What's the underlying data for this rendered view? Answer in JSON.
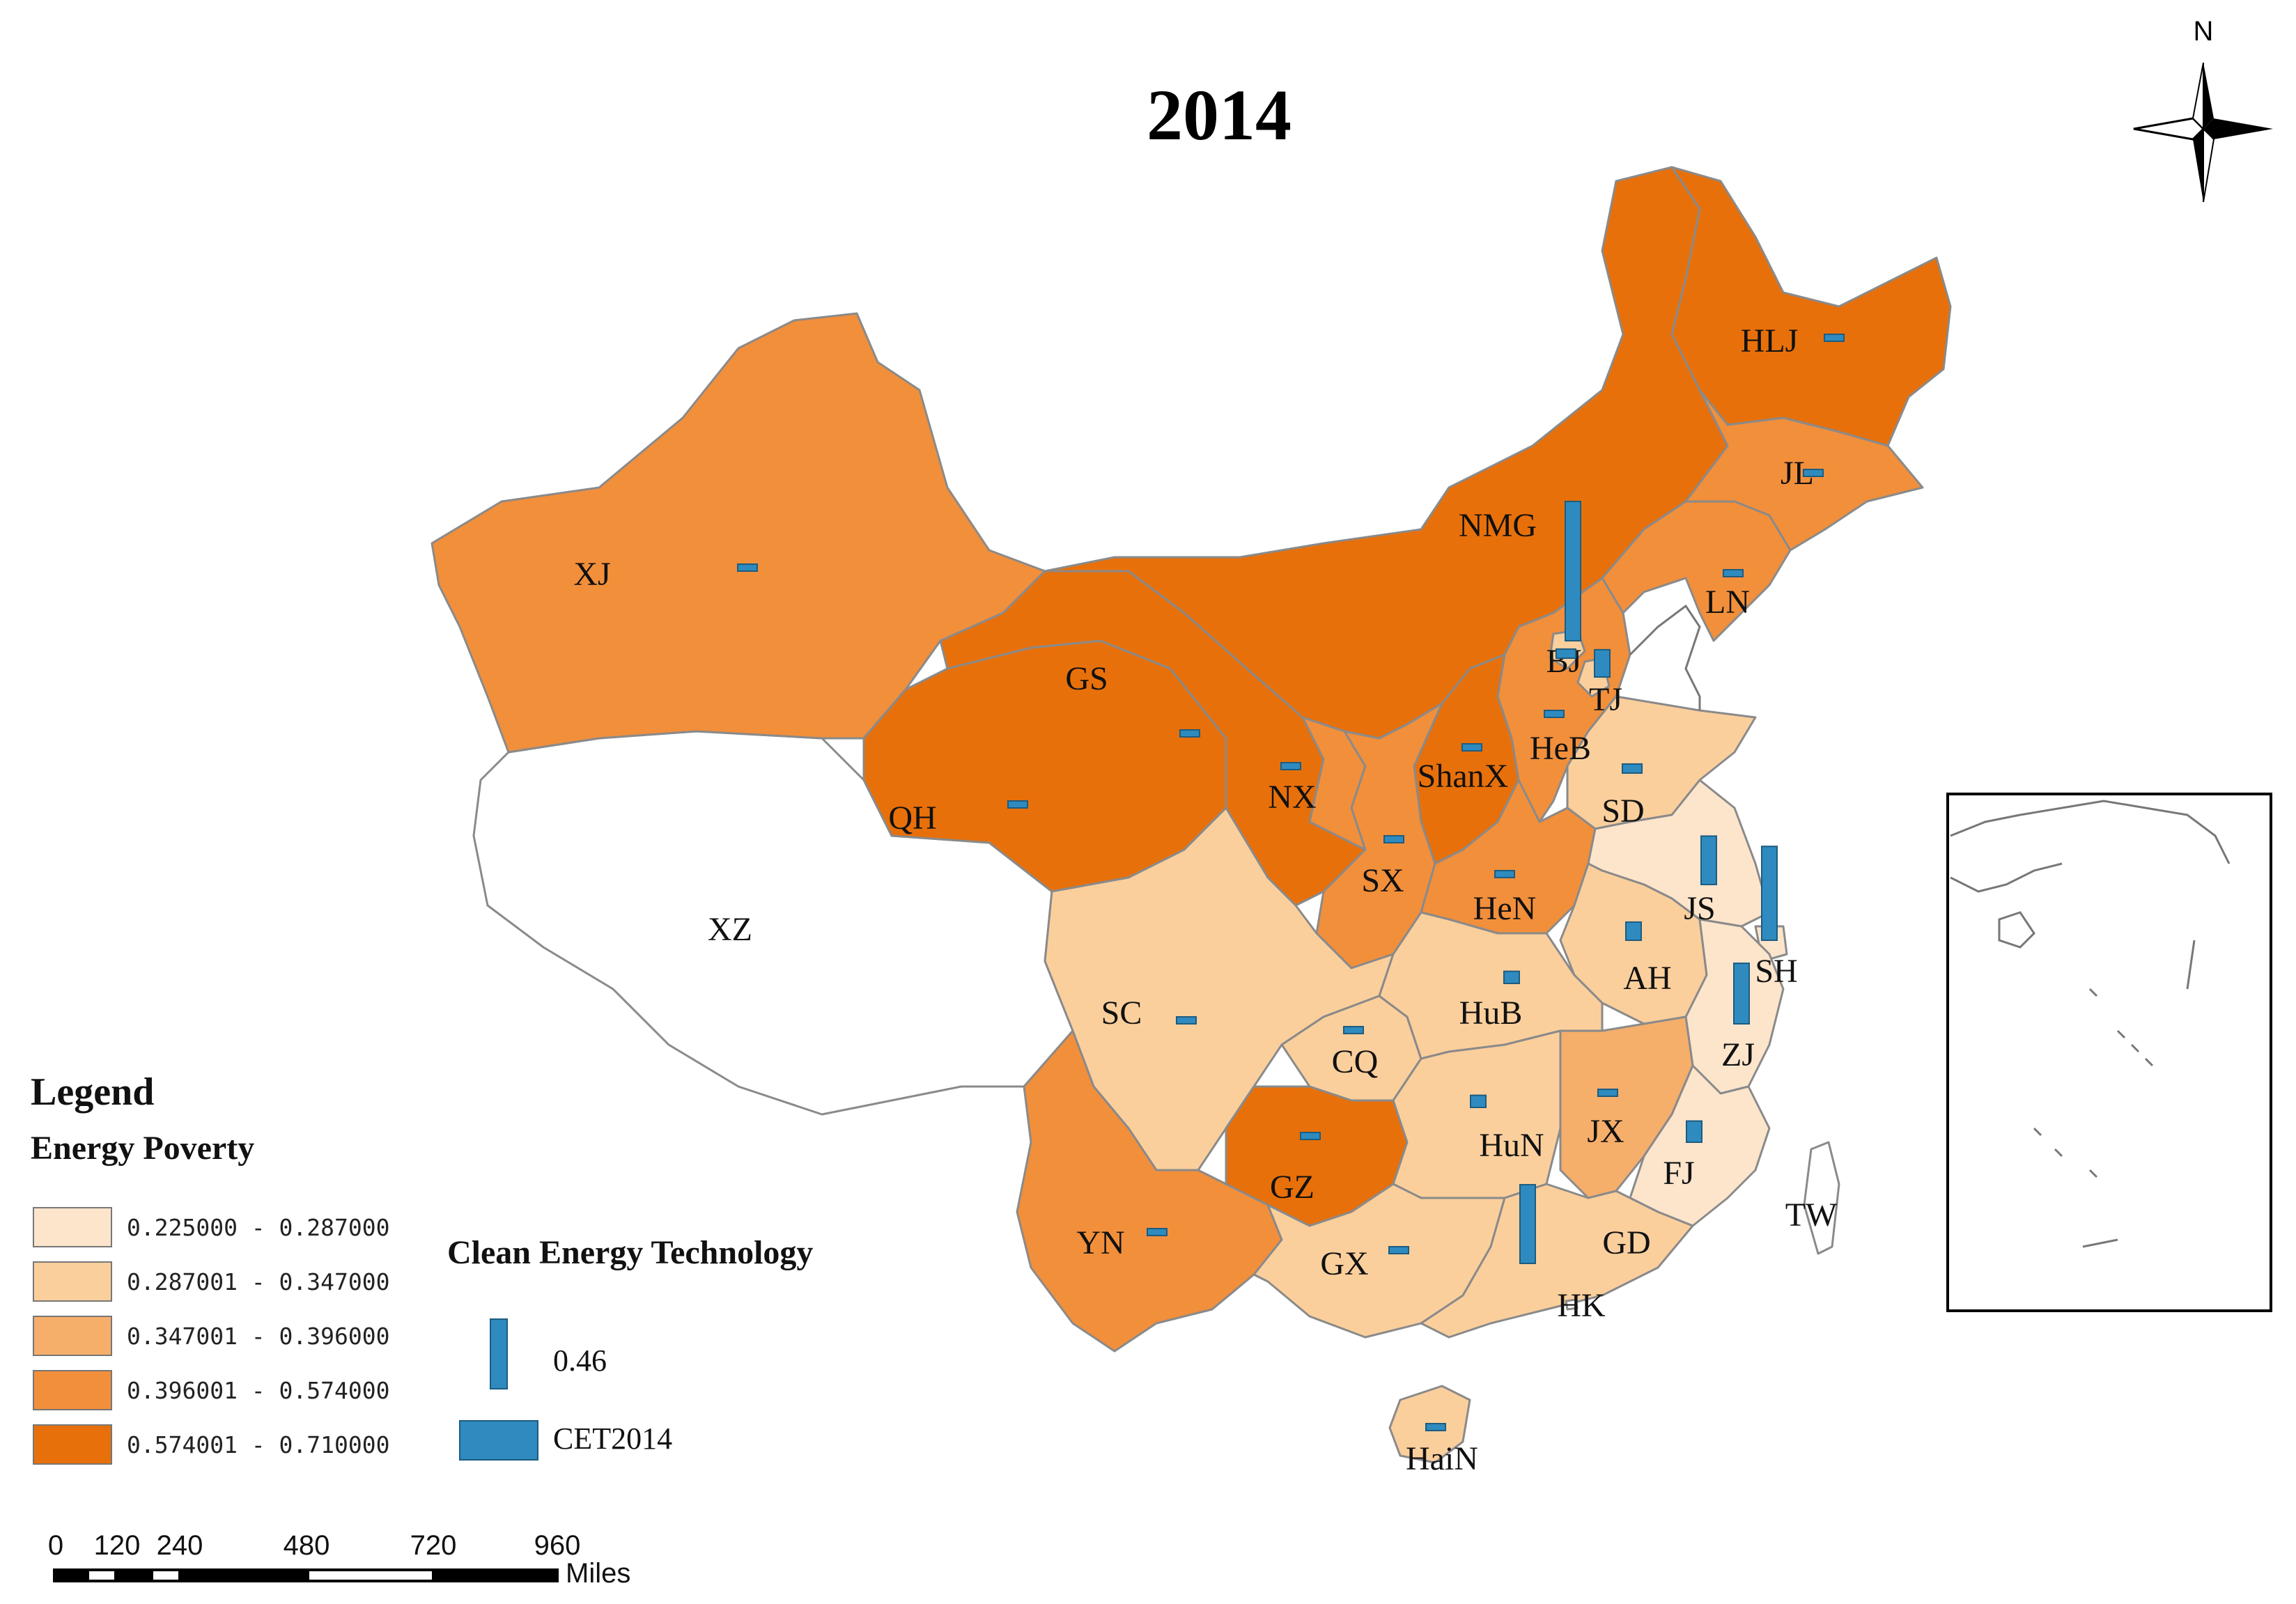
{
  "map": {
    "title": "2014",
    "north_label": "N"
  },
  "legend": {
    "heading": "Legend",
    "energy_poverty_title": "Energy Poverty",
    "classes": [
      {
        "range": "0.225000 - 0.287000",
        "color": "#fde5cc"
      },
      {
        "range": "0.287001 - 0.347000",
        "color": "#fbcf9c"
      },
      {
        "range": "0.347001 - 0.396000",
        "color": "#f6ae6b"
      },
      {
        "range": "0.396001 - 0.574000",
        "color": "#f28f3b"
      },
      {
        "range": "0.574001 - 0.710000",
        "color": "#e8700a"
      }
    ],
    "cet_title": "Clean Energy Technology",
    "cet_value_label": "0.46",
    "cet_series_label": "CET2014",
    "cet_color": "#2f8bbf"
  },
  "scale_bar": {
    "ticks": [
      "0",
      "120",
      "240",
      "480",
      "720",
      "960"
    ],
    "unit": "Miles"
  },
  "provinces": [
    {
      "code": "HLJ",
      "class": 4,
      "cet": 0.02
    },
    {
      "code": "JL",
      "class": 3,
      "cet": 0.02
    },
    {
      "code": "LN",
      "class": 3,
      "cet": 0.02
    },
    {
      "code": "NMG",
      "class": 4,
      "cet": 0.46
    },
    {
      "code": "BJ",
      "class": 1,
      "cet": 0.03
    },
    {
      "code": "TJ",
      "class": 1,
      "cet": 0.09
    },
    {
      "code": "HeB",
      "class": 3,
      "cet": 0.02
    },
    {
      "code": "ShanX",
      "class": 4,
      "cet": 0.02
    },
    {
      "code": "SD",
      "class": 1,
      "cet": 0.03
    },
    {
      "code": "XJ",
      "class": 3,
      "cet": 0.02
    },
    {
      "code": "GS",
      "class": 4,
      "cet": 0.02
    },
    {
      "code": "NX",
      "class": 3,
      "cet": 0.02
    },
    {
      "code": "QH",
      "class": 4,
      "cet": 0.02
    },
    {
      "code": "SX",
      "class": 3,
      "cet": 0.02
    },
    {
      "code": "HeN",
      "class": 3,
      "cet": 0.02
    },
    {
      "code": "XZ",
      "class": null,
      "cet": null
    },
    {
      "code": "JS",
      "class": 0,
      "cet": 0.16
    },
    {
      "code": "SH",
      "class": 0,
      "cet": 0.31
    },
    {
      "code": "AH",
      "class": 1,
      "cet": 0.06
    },
    {
      "code": "SC",
      "class": 1,
      "cet": 0.02
    },
    {
      "code": "HuB",
      "class": 1,
      "cet": 0.04
    },
    {
      "code": "CQ",
      "class": 1,
      "cet": 0.02
    },
    {
      "code": "ZJ",
      "class": 0,
      "cet": 0.2
    },
    {
      "code": "JX",
      "class": 2,
      "cet": 0.02
    },
    {
      "code": "HuN",
      "class": 1,
      "cet": 0.04
    },
    {
      "code": "FJ",
      "class": 0,
      "cet": 0.07
    },
    {
      "code": "GZ",
      "class": 4,
      "cet": 0.02
    },
    {
      "code": "YN",
      "class": 3,
      "cet": 0.02
    },
    {
      "code": "GX",
      "class": 1,
      "cet": 0.02
    },
    {
      "code": "GD",
      "class": 1,
      "cet": 0.26
    },
    {
      "code": "HK",
      "class": null,
      "cet": null
    },
    {
      "code": "TW",
      "class": null,
      "cet": null
    },
    {
      "code": "HaiN",
      "class": 1,
      "cet": 0.02
    }
  ]
}
